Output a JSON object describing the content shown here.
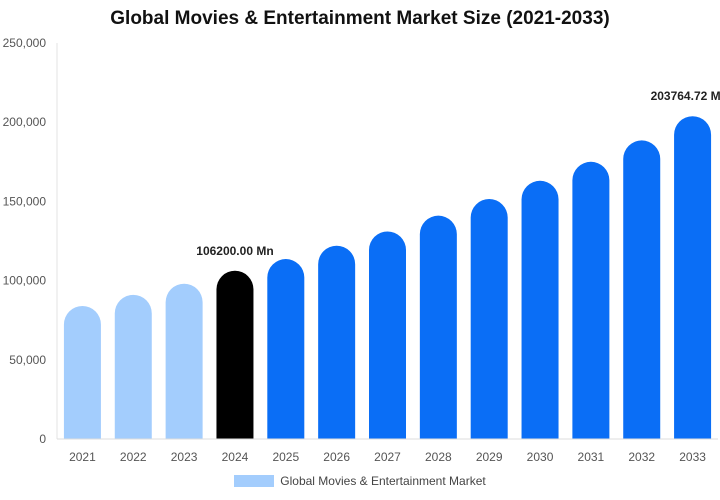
{
  "chart_data": {
    "type": "bar",
    "title": "Global Movies & Entertainment Market Size (2021-2033)",
    "xlabel": "",
    "ylabel": "",
    "categories": [
      "2021",
      "2022",
      "2023",
      "2024",
      "2025",
      "2026",
      "2027",
      "2028",
      "2029",
      "2030",
      "2031",
      "2032",
      "2033"
    ],
    "series": [
      {
        "name": "Global Movies & Entertainment Market",
        "values": [
          84000,
          91000,
          98000,
          106200,
          113600,
          122000,
          131000,
          141000,
          151500,
          163000,
          175000,
          188500,
          203764.72
        ]
      }
    ],
    "ylim": [
      0,
      250000
    ],
    "yticks": [
      "0",
      "50,000",
      "100,000",
      "150,000",
      "200,000",
      "250,000"
    ],
    "ytick_values": [
      0,
      50000,
      100000,
      150000,
      200000,
      250000
    ],
    "annotations": [
      {
        "category": "2024",
        "text": "106200.00 Mn"
      },
      {
        "category": "2033",
        "text": "203764.72 M"
      }
    ],
    "colors": {
      "historical": "#a3cdfd",
      "base_year": "#000000",
      "forecast": "#0a6ef6",
      "legend": "#a3cdfd"
    },
    "bar_color_groups": [
      "historical",
      "historical",
      "historical",
      "base_year",
      "forecast",
      "forecast",
      "forecast",
      "forecast",
      "forecast",
      "forecast",
      "forecast",
      "forecast",
      "forecast"
    ],
    "grid": false,
    "legend_position": "bottom"
  }
}
